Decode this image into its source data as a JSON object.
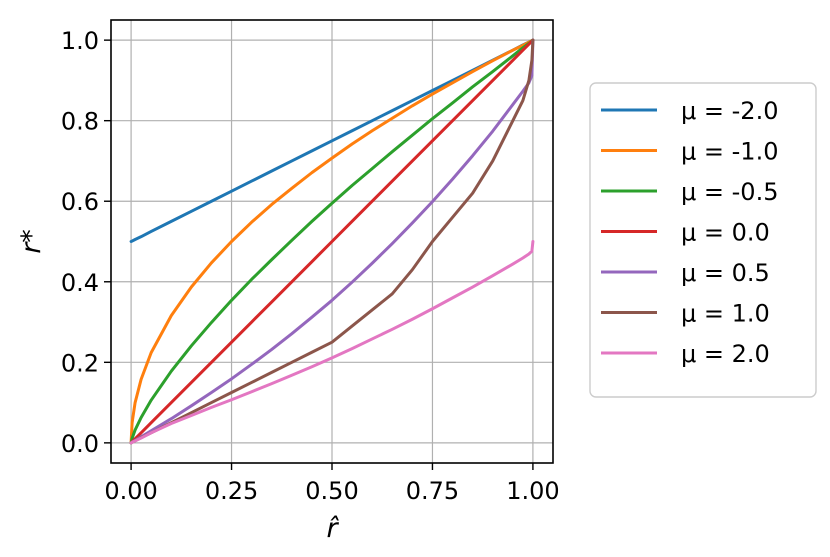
{
  "chart_data": {
    "type": "line",
    "title": "",
    "xlabel": "r̂",
    "ylabel": "r*",
    "xlim": [
      -0.05,
      1.05
    ],
    "ylim": [
      -0.05,
      1.05
    ],
    "xticks": [
      0.0,
      0.25,
      0.5,
      0.75,
      1.0
    ],
    "xtick_labels": [
      "0.00",
      "0.25",
      "0.50",
      "0.75",
      "1.00"
    ],
    "yticks": [
      0.0,
      0.2,
      0.4,
      0.6,
      0.8,
      1.0
    ],
    "ytick_labels": [
      "0.0",
      "0.2",
      "0.4",
      "0.6",
      "0.8",
      "1.0"
    ],
    "grid": true,
    "legend_position": "outside-right",
    "x": [
      0.0,
      0.0025,
      0.01,
      0.025,
      0.05,
      0.1,
      0.15,
      0.2,
      0.25,
      0.3,
      0.35,
      0.4,
      0.45,
      0.5,
      0.55,
      0.6,
      0.65,
      0.7,
      0.75,
      0.8,
      0.85,
      0.9,
      0.95,
      0.975,
      0.99,
      0.9975,
      1.0
    ],
    "series": [
      {
        "name": "μ = -2.0",
        "color": "#1f77b4",
        "values": [
          0.5,
          0.501,
          0.505,
          0.512,
          0.525,
          0.55,
          0.575,
          0.6,
          0.625,
          0.65,
          0.675,
          0.7,
          0.725,
          0.75,
          0.775,
          0.8,
          0.825,
          0.85,
          0.875,
          0.9,
          0.925,
          0.95,
          0.975,
          0.988,
          0.995,
          0.999,
          1.0
        ]
      },
      {
        "name": "μ = -1.0",
        "color": "#ff7f0e",
        "values": [
          0.0,
          0.05,
          0.1,
          0.158,
          0.224,
          0.316,
          0.387,
          0.447,
          0.5,
          0.548,
          0.592,
          0.632,
          0.671,
          0.707,
          0.742,
          0.775,
          0.806,
          0.837,
          0.866,
          0.894,
          0.922,
          0.949,
          0.975,
          0.987,
          0.995,
          0.999,
          1.0
        ]
      },
      {
        "name": "μ = -0.5",
        "color": "#2ca02c",
        "values": [
          0.0,
          0.011,
          0.032,
          0.063,
          0.106,
          0.178,
          0.241,
          0.299,
          0.354,
          0.406,
          0.455,
          0.503,
          0.55,
          0.595,
          0.639,
          0.681,
          0.723,
          0.764,
          0.805,
          0.844,
          0.884,
          0.922,
          0.961,
          0.981,
          0.992,
          0.998,
          1.0
        ]
      },
      {
        "name": "μ = 0.0",
        "color": "#d62728",
        "values": [
          0.0,
          0.0025,
          0.01,
          0.025,
          0.05,
          0.1,
          0.15,
          0.2,
          0.25,
          0.3,
          0.35,
          0.4,
          0.45,
          0.5,
          0.55,
          0.6,
          0.65,
          0.7,
          0.75,
          0.8,
          0.85,
          0.9,
          0.95,
          0.975,
          0.99,
          0.9975,
          1.0
        ]
      },
      {
        "name": "μ = 0.5",
        "color": "#9467bd",
        "values": [
          0.0,
          0.0016,
          0.006,
          0.015,
          0.03,
          0.06,
          0.092,
          0.125,
          0.159,
          0.195,
          0.232,
          0.271,
          0.312,
          0.354,
          0.399,
          0.446,
          0.495,
          0.546,
          0.599,
          0.655,
          0.713,
          0.774,
          0.84,
          0.873,
          0.894,
          0.912,
          1.0
        ]
      },
      {
        "name": "μ = 1.0",
        "color": "#8c564b",
        "values": [
          0.0,
          0.0013,
          0.005,
          0.013,
          0.025,
          0.05,
          0.075,
          0.1,
          0.125,
          0.15,
          0.175,
          0.2,
          0.225,
          0.25,
          0.29,
          0.33,
          0.37,
          0.43,
          0.5,
          0.56,
          0.62,
          0.7,
          0.8,
          0.85,
          0.9,
          0.95,
          1.0
        ]
      },
      {
        "name": "μ = 2.0",
        "color": "#e377c2",
        "values": [
          0.0,
          0.0012,
          0.005,
          0.012,
          0.025,
          0.048,
          0.068,
          0.088,
          0.107,
          0.127,
          0.147,
          0.168,
          0.189,
          0.211,
          0.234,
          0.258,
          0.282,
          0.307,
          0.333,
          0.36,
          0.387,
          0.415,
          0.444,
          0.459,
          0.469,
          0.476,
          0.5
        ]
      }
    ]
  }
}
